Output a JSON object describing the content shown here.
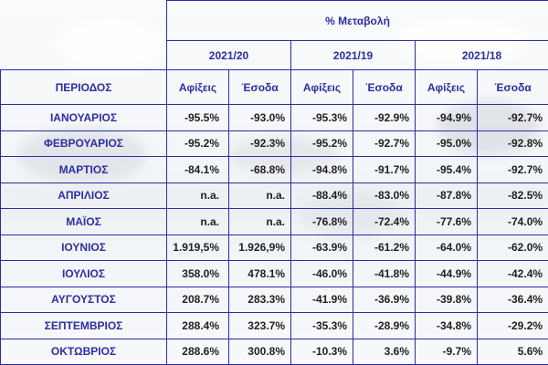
{
  "title": "% Μεταβολή",
  "years": [
    "2021/20",
    "2021/19",
    "2021/18"
  ],
  "period_header": "ΠΕΡΙΟΔΟΣ",
  "sub_headers": [
    "Αφίξεις",
    "Έσοδα"
  ],
  "rows": [
    {
      "period": "ΙΑΝΟΥΑΡΙΟΣ",
      "values": [
        "-95.5%",
        "-93.0%",
        "-95.3%",
        "-92.9%",
        "-94.9%",
        "-92.7%"
      ]
    },
    {
      "period": "ΦΕΒΡΟΥΑΡΙΟΣ",
      "values": [
        "-95.2%",
        "-92.3%",
        "-95.2%",
        "-92.7%",
        "-95.0%",
        "-92.8%"
      ]
    },
    {
      "period": "ΜΑΡΤΙΟΣ",
      "values": [
        "-84.1%",
        "-68.8%",
        "-94.8%",
        "-91.7%",
        "-95.4%",
        "-92.7%"
      ]
    },
    {
      "period": "ΑΠΡΙΛΙΟΣ",
      "values": [
        "n.a.",
        "n.a.",
        "-88.4%",
        "-83.0%",
        "-87.8%",
        "-82.5%"
      ]
    },
    {
      "period": "ΜΑΪΟΣ",
      "values": [
        "n.a.",
        "n.a.",
        "-76.8%",
        "-72.4%",
        "-77.6%",
        "-74.0%"
      ]
    },
    {
      "period": "ΙΟΥΝΙΟΣ",
      "values": [
        "1.919,5%",
        "1.926,9%",
        "-63.9%",
        "-61.2%",
        "-64.0%",
        "-62.0%"
      ]
    },
    {
      "period": "ΙΟΥΛΙΟΣ",
      "values": [
        "358.0%",
        "478.1%",
        "-46.0%",
        "-41.8%",
        "-44.9%",
        "-42.4%"
      ]
    },
    {
      "period": "ΑΥΓΟΥΣΤΟΣ",
      "values": [
        "208.7%",
        "283.3%",
        "-41.9%",
        "-36.9%",
        "-39.8%",
        "-36.4%"
      ]
    },
    {
      "period": "ΣΕΠΤΕΜΒΡΙΟΣ",
      "values": [
        "288.4%",
        "323.7%",
        "-35.3%",
        "-28.9%",
        "-34.8%",
        "-29.2%"
      ]
    },
    {
      "period": "ΟΚΤΩΒΡΙΟΣ",
      "values": [
        "288.6%",
        "300.8%",
        "-10.3%",
        "3.6%",
        "-9.7%",
        "5.6%"
      ]
    }
  ]
}
